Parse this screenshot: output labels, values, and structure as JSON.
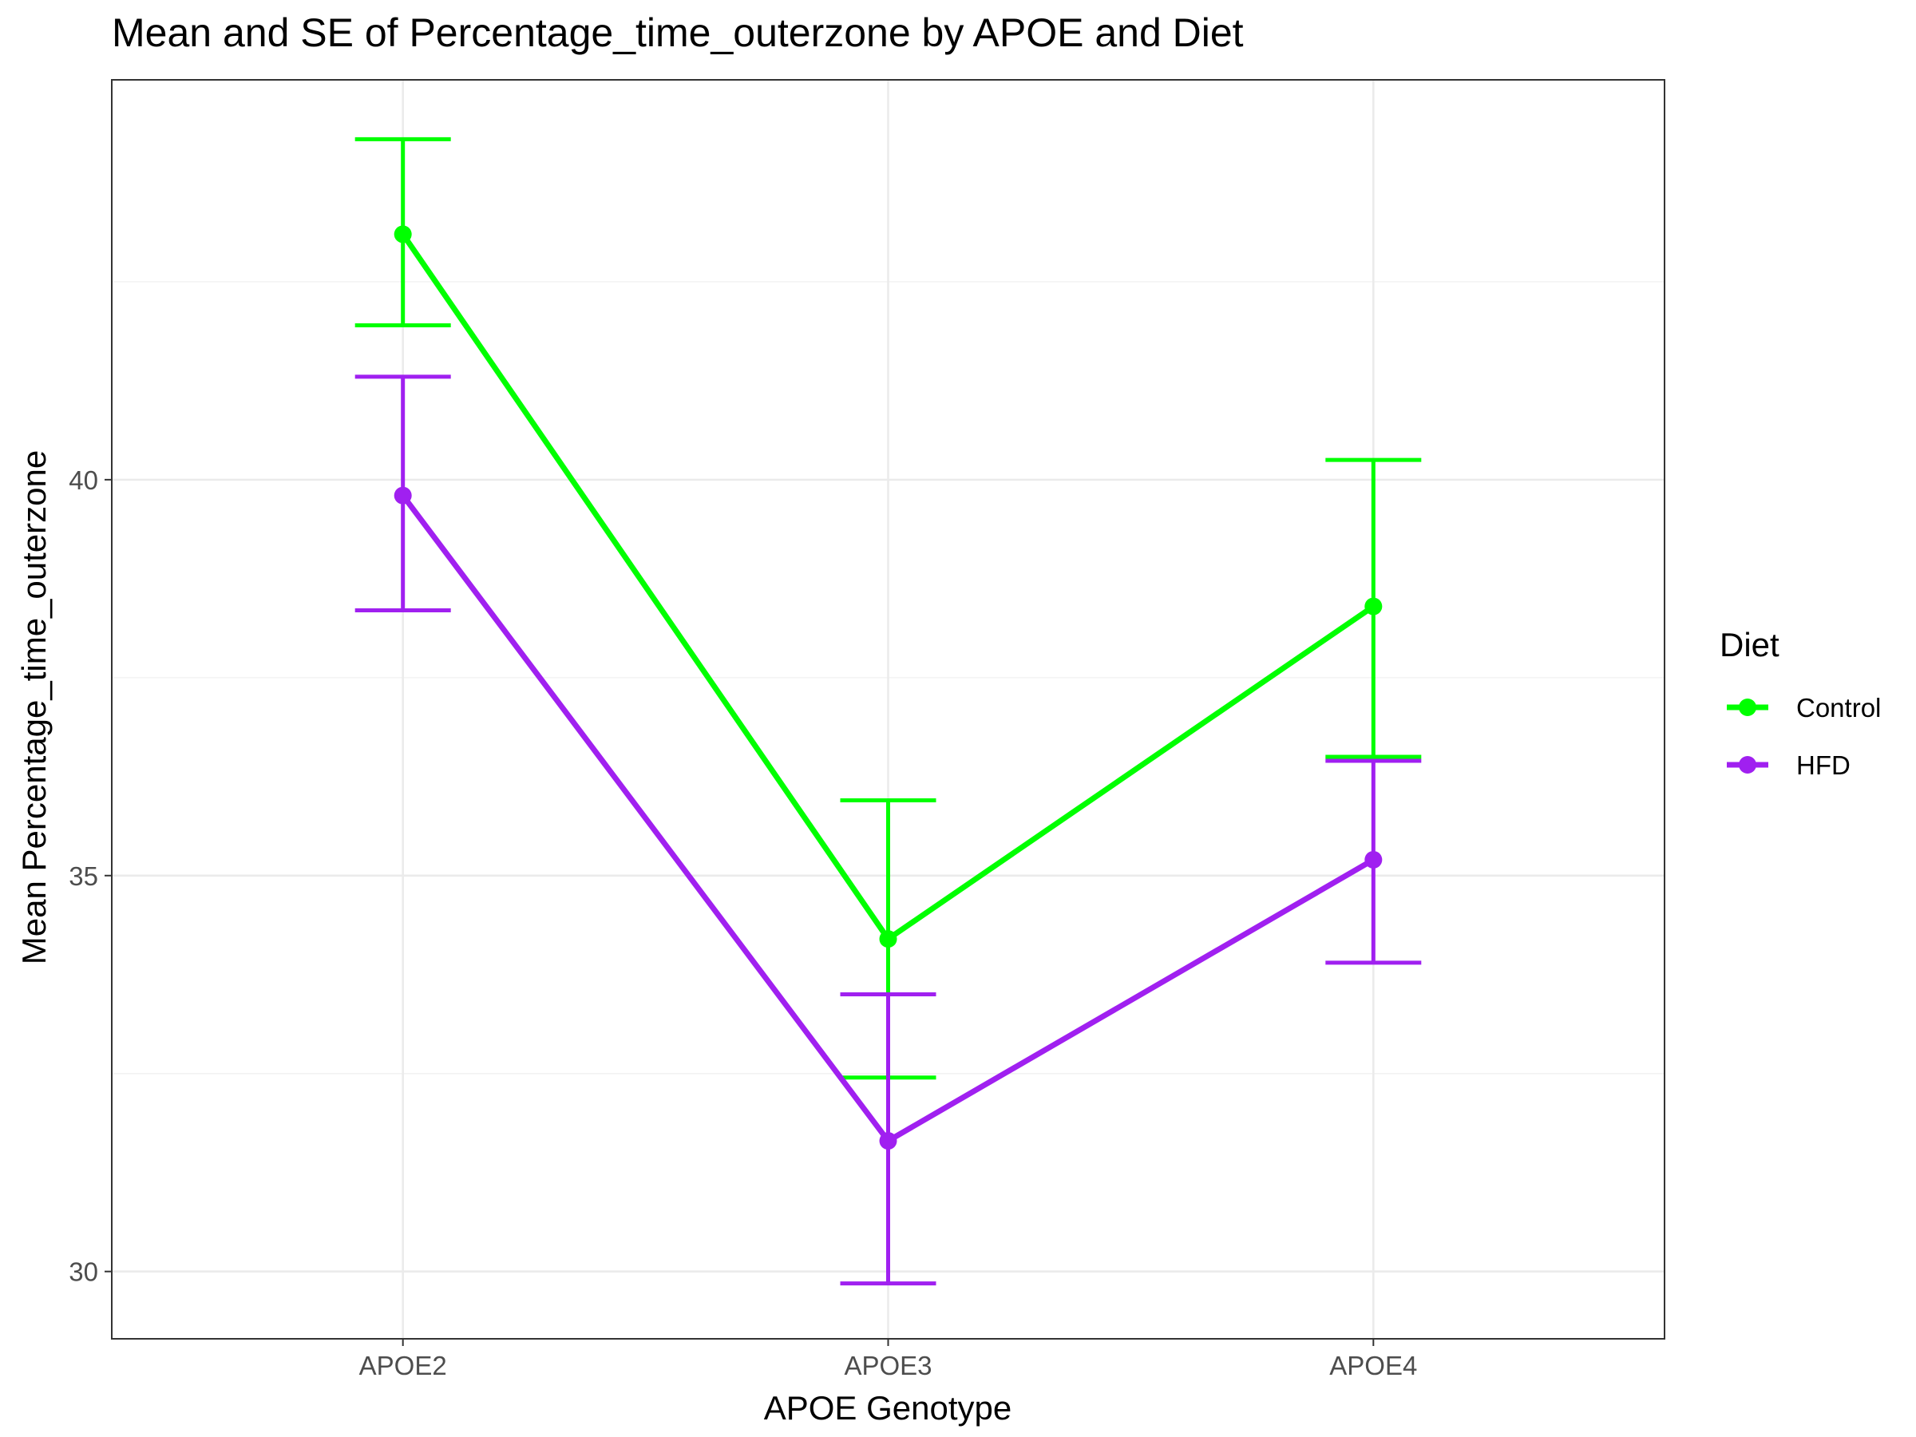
{
  "chart_data": {
    "type": "line",
    "title": "Mean and SE of Percentage_time_outerzone by APOE and Diet",
    "xlabel": "APOE Genotype",
    "ylabel": "Mean Percentage_time_outerzone",
    "categories": [
      "APOE2",
      "APOE3",
      "APOE4"
    ],
    "ylim": [
      29.15,
      45.05
    ],
    "yticks": [
      30,
      35,
      40
    ],
    "y_tick_labels": [
      "30",
      "35",
      "40"
    ],
    "grid": true,
    "error_bars": "SE",
    "legend": {
      "title": "Diet",
      "position": "right"
    },
    "series": [
      {
        "name": "Control",
        "color": "#00ff00",
        "values": [
          43.1,
          34.2,
          38.4
        ],
        "lower": [
          41.95,
          32.45,
          36.5
        ],
        "upper": [
          44.3,
          35.95,
          40.25
        ]
      },
      {
        "name": "HFD",
        "color": "#a020f0",
        "values": [
          39.8,
          31.65,
          35.2
        ],
        "lower": [
          38.35,
          29.85,
          33.9
        ],
        "upper": [
          41.3,
          33.5,
          36.45
        ]
      }
    ]
  }
}
